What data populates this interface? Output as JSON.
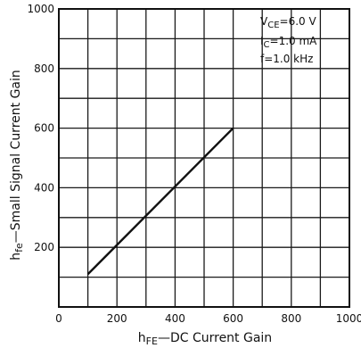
{
  "chart_data": {
    "type": "line",
    "title": "",
    "xlabel": "hFE—DC Current Gain",
    "ylabel": "hfe—Small Signal Current Gain",
    "xlim": [
      0,
      1000
    ],
    "ylim": [
      0,
      1000
    ],
    "x_ticks": [
      0,
      200,
      400,
      600,
      800,
      1000
    ],
    "y_ticks": [
      0,
      200,
      400,
      600,
      800,
      1000
    ],
    "x_tick_labels": [
      "0",
      "200",
      "400",
      "600",
      "800",
      "1000"
    ],
    "y_tick_labels": [
      "",
      "200",
      "400",
      "600",
      "800",
      "1000"
    ],
    "grid": true,
    "series": [
      {
        "x": [
          100,
          600
        ],
        "y": [
          110,
          600
        ]
      }
    ],
    "conditions": {
      "vce": "VCE=6.0 V",
      "ic": "IC=1.0 mA",
      "f": "f=1.0 kHz"
    }
  }
}
